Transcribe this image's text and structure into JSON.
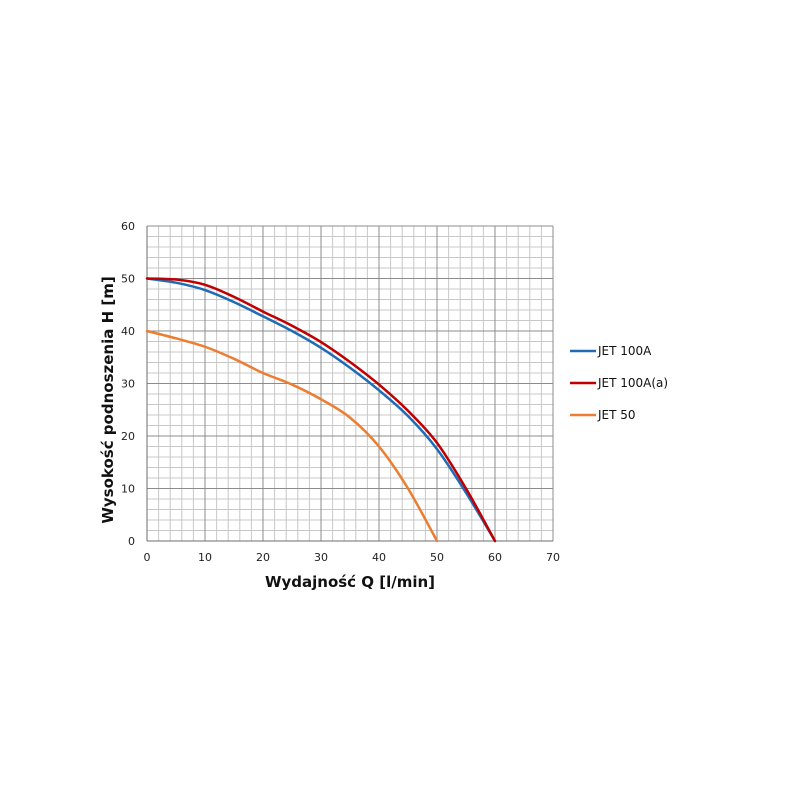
{
  "chart_data": {
    "type": "line",
    "xlabel": "Wydajność Q [l/min]",
    "ylabel": "Wysokość podnoszenia H [m]",
    "xlim": [
      0,
      70
    ],
    "ylim": [
      0,
      60
    ],
    "xticks": [
      0,
      10,
      20,
      30,
      40,
      50,
      60,
      70
    ],
    "yticks": [
      0,
      10,
      20,
      30,
      40,
      50,
      60
    ],
    "grid": true,
    "minor_grid": true,
    "legend_position": "right",
    "series": [
      {
        "name": "JET 100A",
        "color": "#1f6bb5",
        "x": [
          0,
          5,
          10,
          15,
          20,
          25,
          30,
          35,
          40,
          45,
          50,
          55,
          60
        ],
        "y": [
          50,
          49.2,
          47.8,
          45.5,
          42.8,
          40,
          36.8,
          33,
          28.7,
          23.8,
          17.5,
          9.2,
          0
        ]
      },
      {
        "name": "JET 100A(a)",
        "color": "#c00000",
        "x": [
          0,
          5,
          10,
          15,
          20,
          25,
          30,
          35,
          40,
          45,
          50,
          55,
          60
        ],
        "y": [
          50,
          49.8,
          48.8,
          46.5,
          43.7,
          41,
          37.9,
          34.1,
          29.8,
          24.8,
          18.7,
          10,
          0
        ]
      },
      {
        "name": "JET 50",
        "color": "#ed7d31",
        "x": [
          0,
          5,
          10,
          15,
          20,
          25,
          30,
          35,
          40,
          45,
          50
        ],
        "y": [
          40,
          38.6,
          37,
          34.7,
          32,
          29.8,
          27,
          23.5,
          18,
          10,
          0
        ]
      }
    ]
  }
}
